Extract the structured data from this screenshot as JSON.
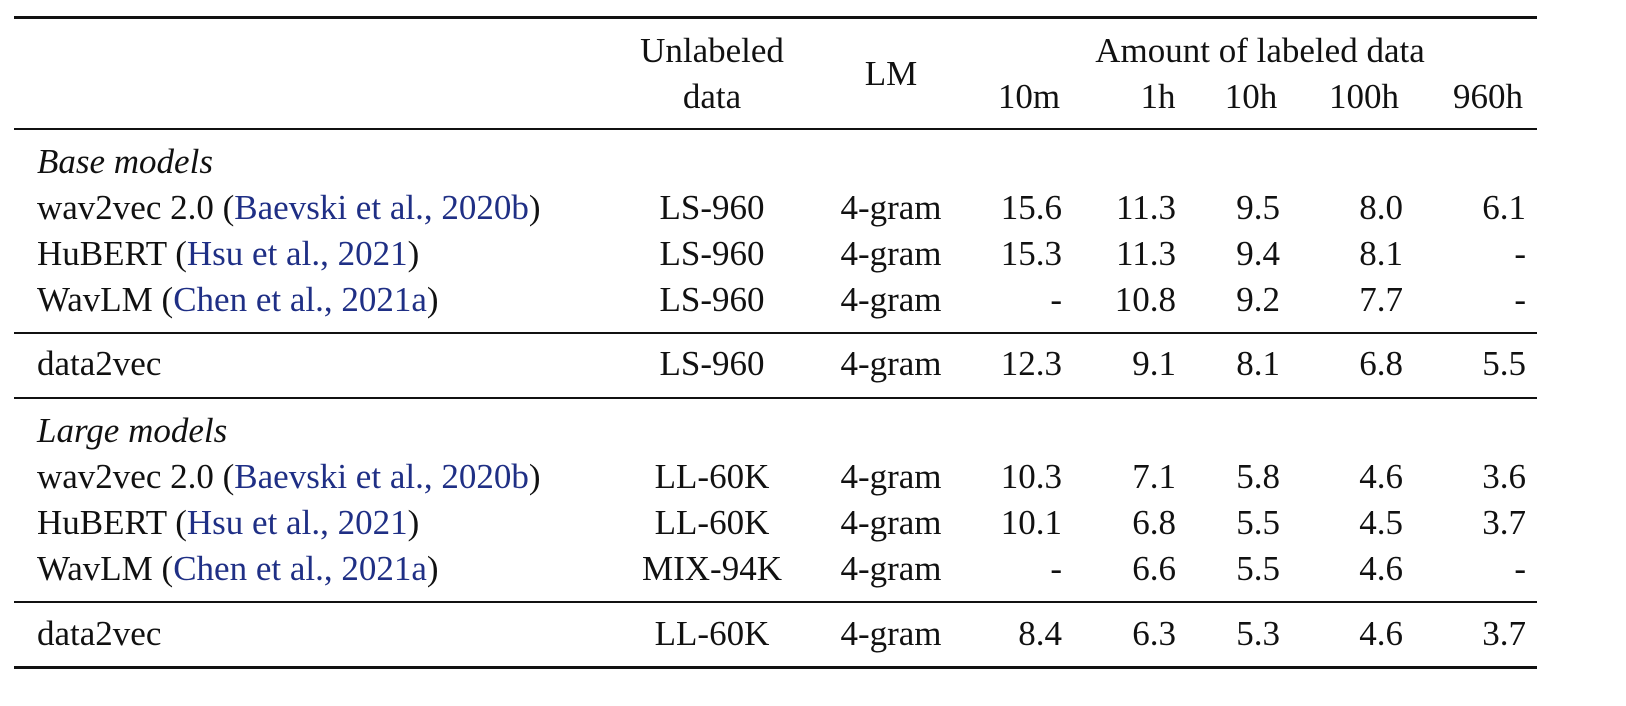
{
  "header": {
    "unlabeled_line1": "Unlabeled",
    "unlabeled_line2": "data",
    "lm": "LM",
    "amount": "Amount of labeled data",
    "cols": [
      "10m",
      "1h",
      "10h",
      "100h",
      "960h"
    ]
  },
  "sections": {
    "base_title": "Base models",
    "large_title": "Large models"
  },
  "rows": {
    "base": [
      {
        "name": "wav2vec 2.0",
        "paren_open": " (",
        "cite": "Baevski et al., 2020b",
        "paren_close": ")",
        "unlabeled": "LS-960",
        "lm": "4-gram",
        "values": [
          "15.6",
          "11.3",
          "9.5",
          "8.0",
          "6.1"
        ]
      },
      {
        "name": "HuBERT",
        "paren_open": " (",
        "cite": "Hsu et al., 2021",
        "paren_close": ")",
        "unlabeled": "LS-960",
        "lm": "4-gram",
        "values": [
          "15.3",
          "11.3",
          "9.4",
          "8.1",
          "-"
        ]
      },
      {
        "name": "WavLM",
        "paren_open": " (",
        "cite": "Chen et al., 2021a",
        "paren_close": ")",
        "unlabeled": "LS-960",
        "lm": "4-gram",
        "values": [
          "-",
          "10.8",
          "9.2",
          "7.7",
          "-"
        ]
      }
    ],
    "base_ours": {
      "name": "data2vec",
      "unlabeled": "LS-960",
      "lm": "4-gram",
      "values": [
        "12.3",
        "9.1",
        "8.1",
        "6.8",
        "5.5"
      ]
    },
    "large": [
      {
        "name": "wav2vec 2.0",
        "paren_open": " (",
        "cite": "Baevski et al., 2020b",
        "paren_close": ")",
        "unlabeled": "LL-60K",
        "lm": "4-gram",
        "values": [
          "10.3",
          "7.1",
          "5.8",
          "4.6",
          "3.6"
        ]
      },
      {
        "name": "HuBERT",
        "paren_open": " (",
        "cite": "Hsu et al., 2021",
        "paren_close": ")",
        "unlabeled": "LL-60K",
        "lm": "4-gram",
        "values": [
          "10.1",
          "6.8",
          "5.5",
          "4.5",
          "3.7"
        ]
      },
      {
        "name": "WavLM",
        "paren_open": " (",
        "cite": "Chen et al., 2021a",
        "paren_close": ")",
        "unlabeled": "MIX-94K",
        "lm": "4-gram",
        "values": [
          "-",
          "6.6",
          "5.5",
          "4.6",
          "-"
        ]
      }
    ],
    "large_ours": {
      "name": "data2vec",
      "unlabeled": "LL-60K",
      "lm": "4-gram",
      "values": [
        "8.4",
        "6.3",
        "5.3",
        "4.6",
        "3.7"
      ]
    }
  },
  "colors": {
    "citation": "#1f2f85",
    "text": "#111111",
    "rule": "#111111"
  }
}
